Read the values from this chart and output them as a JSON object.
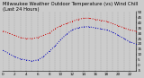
{
  "title": "Milwaukee Weather Outdoor Temperature (vs) Wind Chill (Last 24 Hours)",
  "background_color": "#cccccc",
  "plot_bg_color": "#cccccc",
  "red_x": [
    0,
    1,
    2,
    3,
    4,
    5,
    6,
    7,
    8,
    9,
    10,
    11,
    12,
    13,
    14,
    15,
    16,
    17,
    18,
    19,
    20,
    21,
    22,
    23
  ],
  "red_y": [
    32,
    30,
    28,
    26,
    25,
    25,
    26,
    28,
    30,
    34,
    37,
    39,
    41,
    43,
    44,
    44,
    43,
    42,
    41,
    39,
    37,
    35,
    33,
    32
  ],
  "blue_x": [
    0,
    1,
    2,
    3,
    4,
    5,
    6,
    7,
    8,
    9,
    10,
    11,
    12,
    13,
    14,
    15,
    16,
    17,
    18,
    19,
    20,
    21,
    22,
    23
  ],
  "blue_y": [
    14,
    11,
    8,
    6,
    5,
    4,
    5,
    8,
    13,
    18,
    24,
    29,
    33,
    35,
    36,
    36,
    35,
    34,
    33,
    31,
    28,
    25,
    22,
    20
  ],
  "ylim": [
    -5,
    50
  ],
  "ytick_values": [
    50,
    45,
    40,
    35,
    30,
    25,
    20,
    15,
    10,
    5,
    0,
    -5
  ],
  "ytick_labels": [
    "50",
    "45",
    "40",
    "35",
    "30",
    "25",
    "20",
    "15",
    "10",
    "5",
    "0",
    "-5"
  ],
  "xlim": [
    0,
    23
  ],
  "xtick_positions": [
    0,
    2,
    4,
    6,
    8,
    10,
    12,
    14,
    16,
    18,
    20,
    22
  ],
  "xtick_labels": [
    "0",
    "2",
    "4",
    "6",
    "8",
    "10",
    "12",
    "14",
    "16",
    "18",
    "20",
    "22"
  ],
  "vgrid_positions": [
    0,
    1,
    2,
    3,
    4,
    5,
    6,
    7,
    8,
    9,
    10,
    11,
    12,
    13,
    14,
    15,
    16,
    17,
    18,
    19,
    20,
    21,
    22,
    23
  ],
  "red_color": "#cc0000",
  "blue_color": "#0000bb",
  "grid_color": "#999999",
  "title_fontsize": 3.8,
  "tick_fontsize": 3.0,
  "line_width": 0.7,
  "marker_size": 1.2
}
